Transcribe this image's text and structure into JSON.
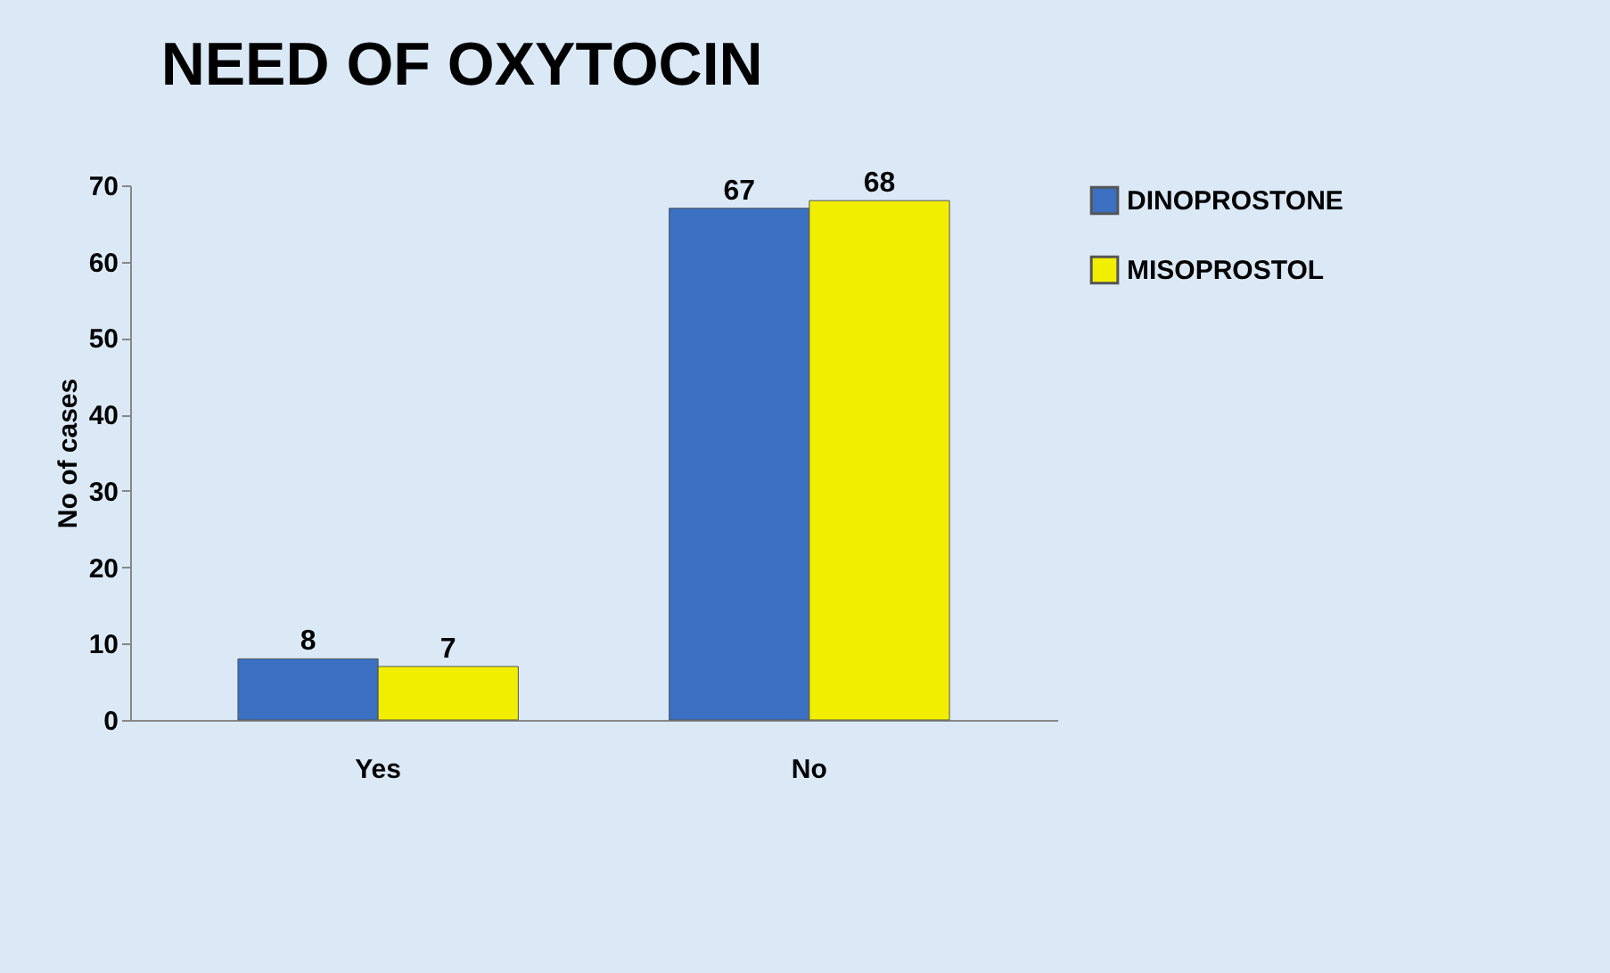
{
  "chart_data": {
    "type": "bar",
    "title": "NEED OF OXYTOCIN",
    "ylabel": "No of cases",
    "categories": [
      "Yes",
      "No"
    ],
    "series": [
      {
        "name": "DINOPROSTONE",
        "color": "#3a6fc2",
        "values": [
          8,
          67
        ]
      },
      {
        "name": "MISOPROSTOL",
        "color": "#f2ee00",
        "values": [
          7,
          68
        ]
      }
    ],
    "ylim": [
      0,
      70
    ],
    "yticks": [
      0,
      10,
      20,
      30,
      40,
      50,
      60,
      70
    ],
    "grid": false,
    "legend": "right",
    "data_labels": true
  }
}
